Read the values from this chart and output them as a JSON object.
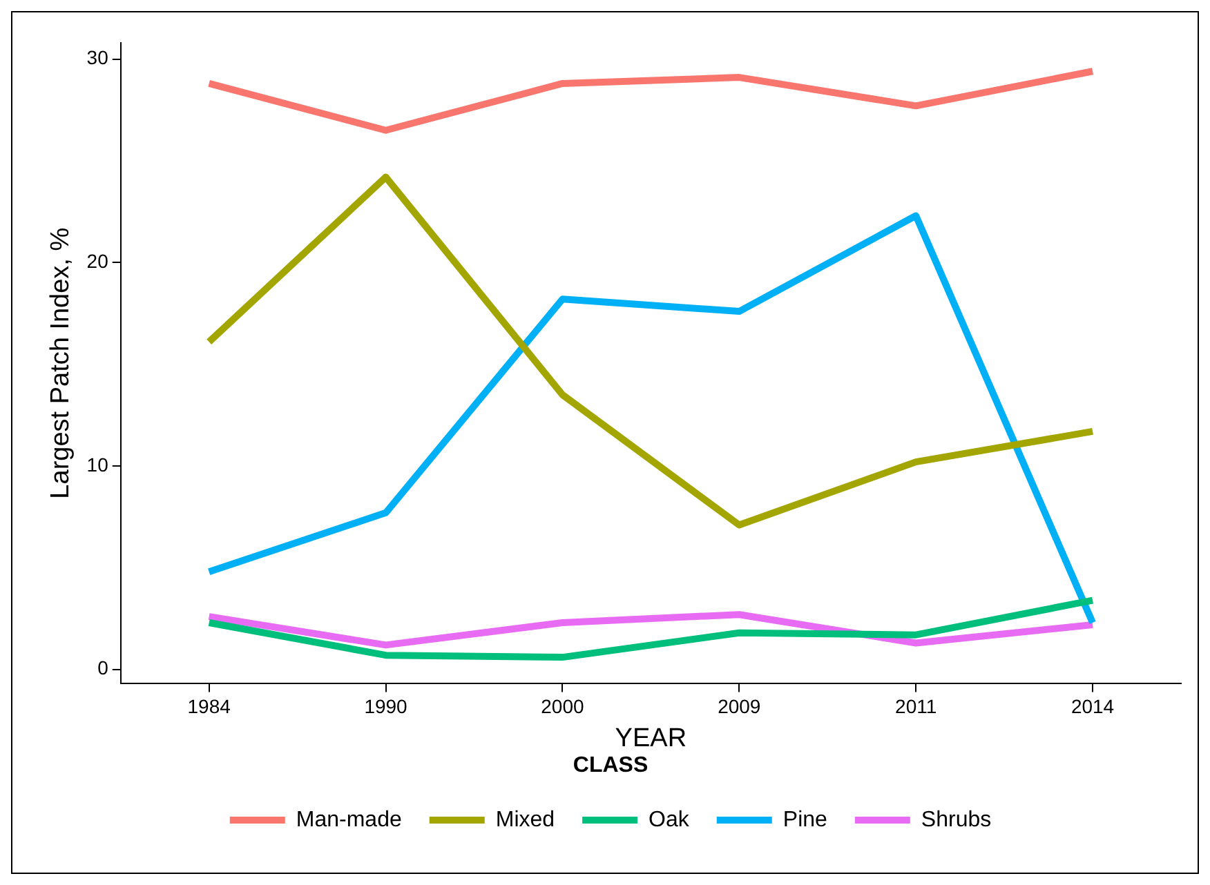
{
  "chart_data": {
    "type": "line",
    "xlabel": "YEAR",
    "ylabel": "Largest Patch Index, %",
    "legend_title": "CLASS",
    "legend": "bottom",
    "categories": [
      "1984",
      "1990",
      "2000",
      "2009",
      "2011",
      "2014"
    ],
    "ylim": [
      -0.7,
      30.8
    ],
    "yticks": [
      0,
      10,
      20,
      30
    ],
    "series": [
      {
        "name": "Man-made",
        "color": "#f8766d",
        "values": [
          28.8,
          26.5,
          28.8,
          29.1,
          27.7,
          29.4
        ]
      },
      {
        "name": "Mixed",
        "color": "#a3a500",
        "values": [
          16.1,
          24.2,
          13.5,
          7.1,
          10.2,
          11.7
        ]
      },
      {
        "name": "Oak",
        "color": "#00bf7d",
        "values": [
          2.3,
          0.7,
          0.6,
          1.8,
          1.7,
          3.4
        ]
      },
      {
        "name": "Pine",
        "color": "#00b0f6",
        "values": [
          4.8,
          7.7,
          18.2,
          17.6,
          22.3,
          2.3
        ]
      },
      {
        "name": "Shrubs",
        "color": "#e76bf3",
        "values": [
          2.6,
          1.2,
          2.3,
          2.7,
          1.3,
          2.2
        ]
      }
    ]
  }
}
